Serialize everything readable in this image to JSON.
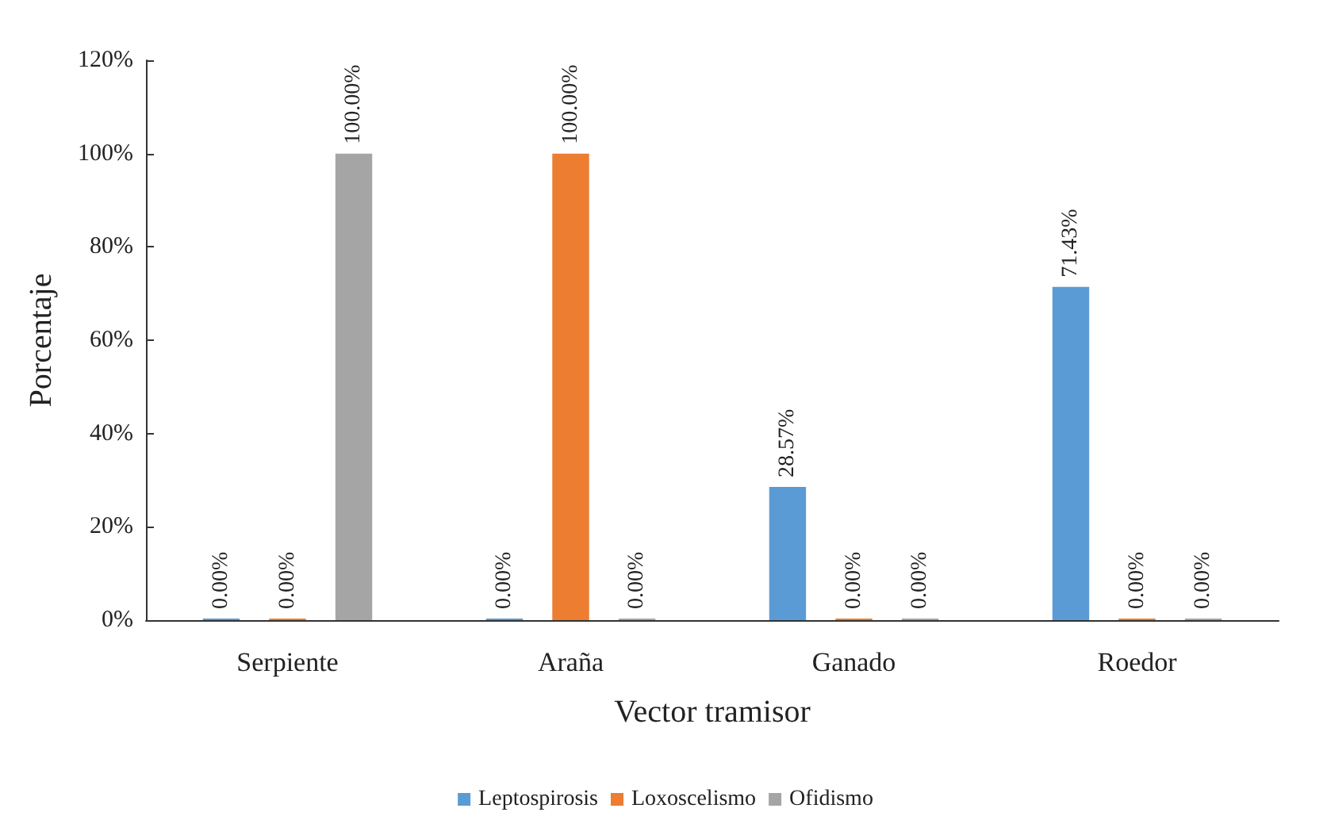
{
  "chart_data": {
    "type": "bar",
    "xlabel": "Vector tramisor",
    "ylabel": "Porcentaje",
    "categories": [
      "Serpiente",
      "Araña",
      "Ganado",
      "Roedor"
    ],
    "series": [
      {
        "name": "Leptospirosis",
        "color": "#5b9bd5",
        "values": [
          0,
          0,
          28.57,
          71.43
        ],
        "value_labels": [
          "0.00%",
          "0.00%",
          "28.57%",
          "71.43%"
        ]
      },
      {
        "name": "Loxoscelismo",
        "color": "#ed7d31",
        "values": [
          0,
          100,
          0,
          0
        ],
        "value_labels": [
          "0.00%",
          "100.00%",
          "0.00%",
          "0.00%"
        ]
      },
      {
        "name": "Ofidismo",
        "color": "#a5a5a5",
        "values": [
          100,
          0,
          0,
          0
        ],
        "value_labels": [
          "100.00%",
          "0.00%",
          "0.00%",
          "0.00%"
        ]
      }
    ],
    "ylim": [
      0,
      120
    ],
    "yticks": [
      {
        "value": 0,
        "label": "0%"
      },
      {
        "value": 20,
        "label": "20%"
      },
      {
        "value": 40,
        "label": "40%"
      },
      {
        "value": 60,
        "label": "60%"
      },
      {
        "value": 80,
        "label": "80%"
      },
      {
        "value": 100,
        "label": "100%"
      },
      {
        "value": 120,
        "label": "120%"
      }
    ],
    "grid": false,
    "legend": "bottom"
  }
}
